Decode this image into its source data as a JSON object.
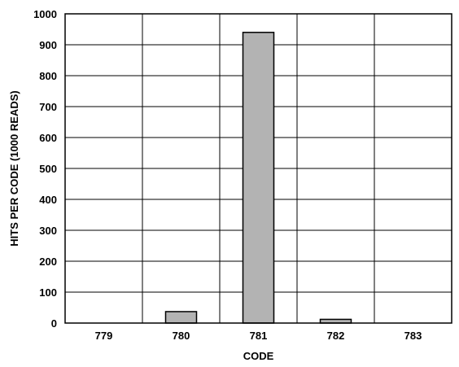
{
  "chart_data": {
    "type": "bar",
    "title": "",
    "xlabel": "CODE",
    "ylabel": "HITS PER CODE (1000 READS)",
    "categories": [
      "779",
      "780",
      "781",
      "782",
      "783"
    ],
    "values": [
      0,
      37,
      940,
      12,
      0
    ],
    "ylim": [
      0,
      1000
    ],
    "yticks": [
      0,
      100,
      200,
      300,
      400,
      500,
      600,
      700,
      800,
      900,
      1000
    ],
    "grid": true,
    "bar_color": "#b3b3b3",
    "bar_edge_color": "#000000"
  }
}
